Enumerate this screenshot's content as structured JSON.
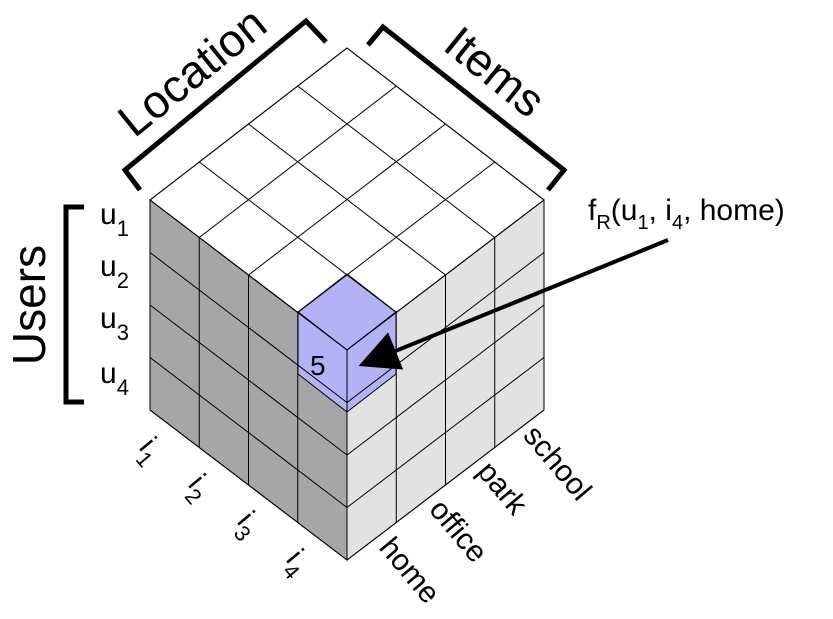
{
  "labels": {
    "location": "Location",
    "items": "Items",
    "users": "Users",
    "cell_value": "5",
    "function_name": "f",
    "function_sub": "R",
    "function_args": [
      "(u",
      "1",
      ", i",
      "4",
      ", home)"
    ]
  },
  "users": [
    {
      "base": "u",
      "sub": "1"
    },
    {
      "base": "u",
      "sub": "2"
    },
    {
      "base": "u",
      "sub": "3"
    },
    {
      "base": "u",
      "sub": "4"
    }
  ],
  "items": [
    {
      "base": "i",
      "sub": "1"
    },
    {
      "base": "i",
      "sub": "2"
    },
    {
      "base": "i",
      "sub": "3"
    },
    {
      "base": "i",
      "sub": "4"
    }
  ],
  "locations": [
    "home",
    "office",
    "park",
    "school"
  ],
  "colors": {
    "top_face": "#ffffff",
    "left_face": "#a6a6a6",
    "right_face": "#e2e2e2",
    "highlight_top": "#b4b2f6",
    "highlight_side": "#b4b2f6",
    "line": "#000000"
  },
  "highlight": {
    "user": "u1",
    "item": "i4",
    "location": "home",
    "value": "5"
  }
}
